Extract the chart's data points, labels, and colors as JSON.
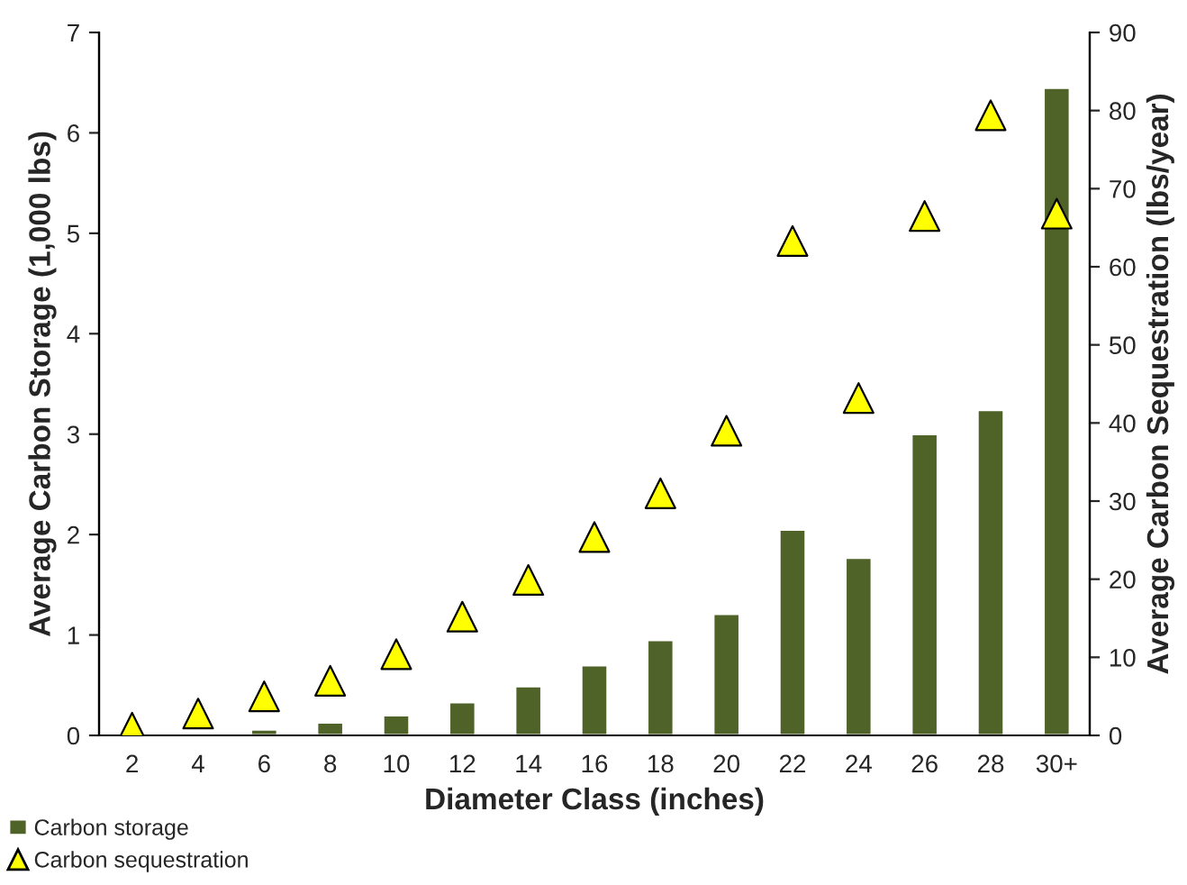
{
  "chart_data": {
    "type": "bar",
    "xlabel": "Diameter Class (inches)",
    "ylabel": "Average Carbon Storage (1,000 lbs)",
    "y2label": "Average Carbon Sequestration (lbs/year)",
    "categories": [
      "2",
      "4",
      "6",
      "8",
      "10",
      "12",
      "14",
      "16",
      "18",
      "20",
      "22",
      "24",
      "26",
      "28",
      "30+"
    ],
    "series": [
      {
        "name": "Carbon storage",
        "color": "#4f6228",
        "values": [
          0.01,
          0.02,
          0.06,
          0.13,
          0.2,
          0.33,
          0.49,
          0.7,
          0.95,
          1.21,
          2.05,
          1.77,
          3.0,
          3.24,
          6.45
        ]
      },
      {
        "name": "Carbon sequestration",
        "type": "scatter",
        "axis": "y2",
        "marker": "triangle",
        "color": "#ffff00",
        "values": [
          1,
          2.8,
          5,
          7,
          10.4,
          15.2,
          19.9,
          25.4,
          31,
          39,
          63.3,
          43.2,
          66.5,
          79.4,
          66.8
        ]
      }
    ],
    "ylim": [
      0,
      7
    ],
    "yticks": [
      0,
      1,
      2,
      3,
      4,
      5,
      6,
      7
    ],
    "y2lim": [
      0,
      90
    ],
    "y2ticks": [
      0,
      10,
      20,
      30,
      40,
      50,
      60,
      70,
      80,
      90
    ],
    "grid": false,
    "legend": "bottom left"
  }
}
